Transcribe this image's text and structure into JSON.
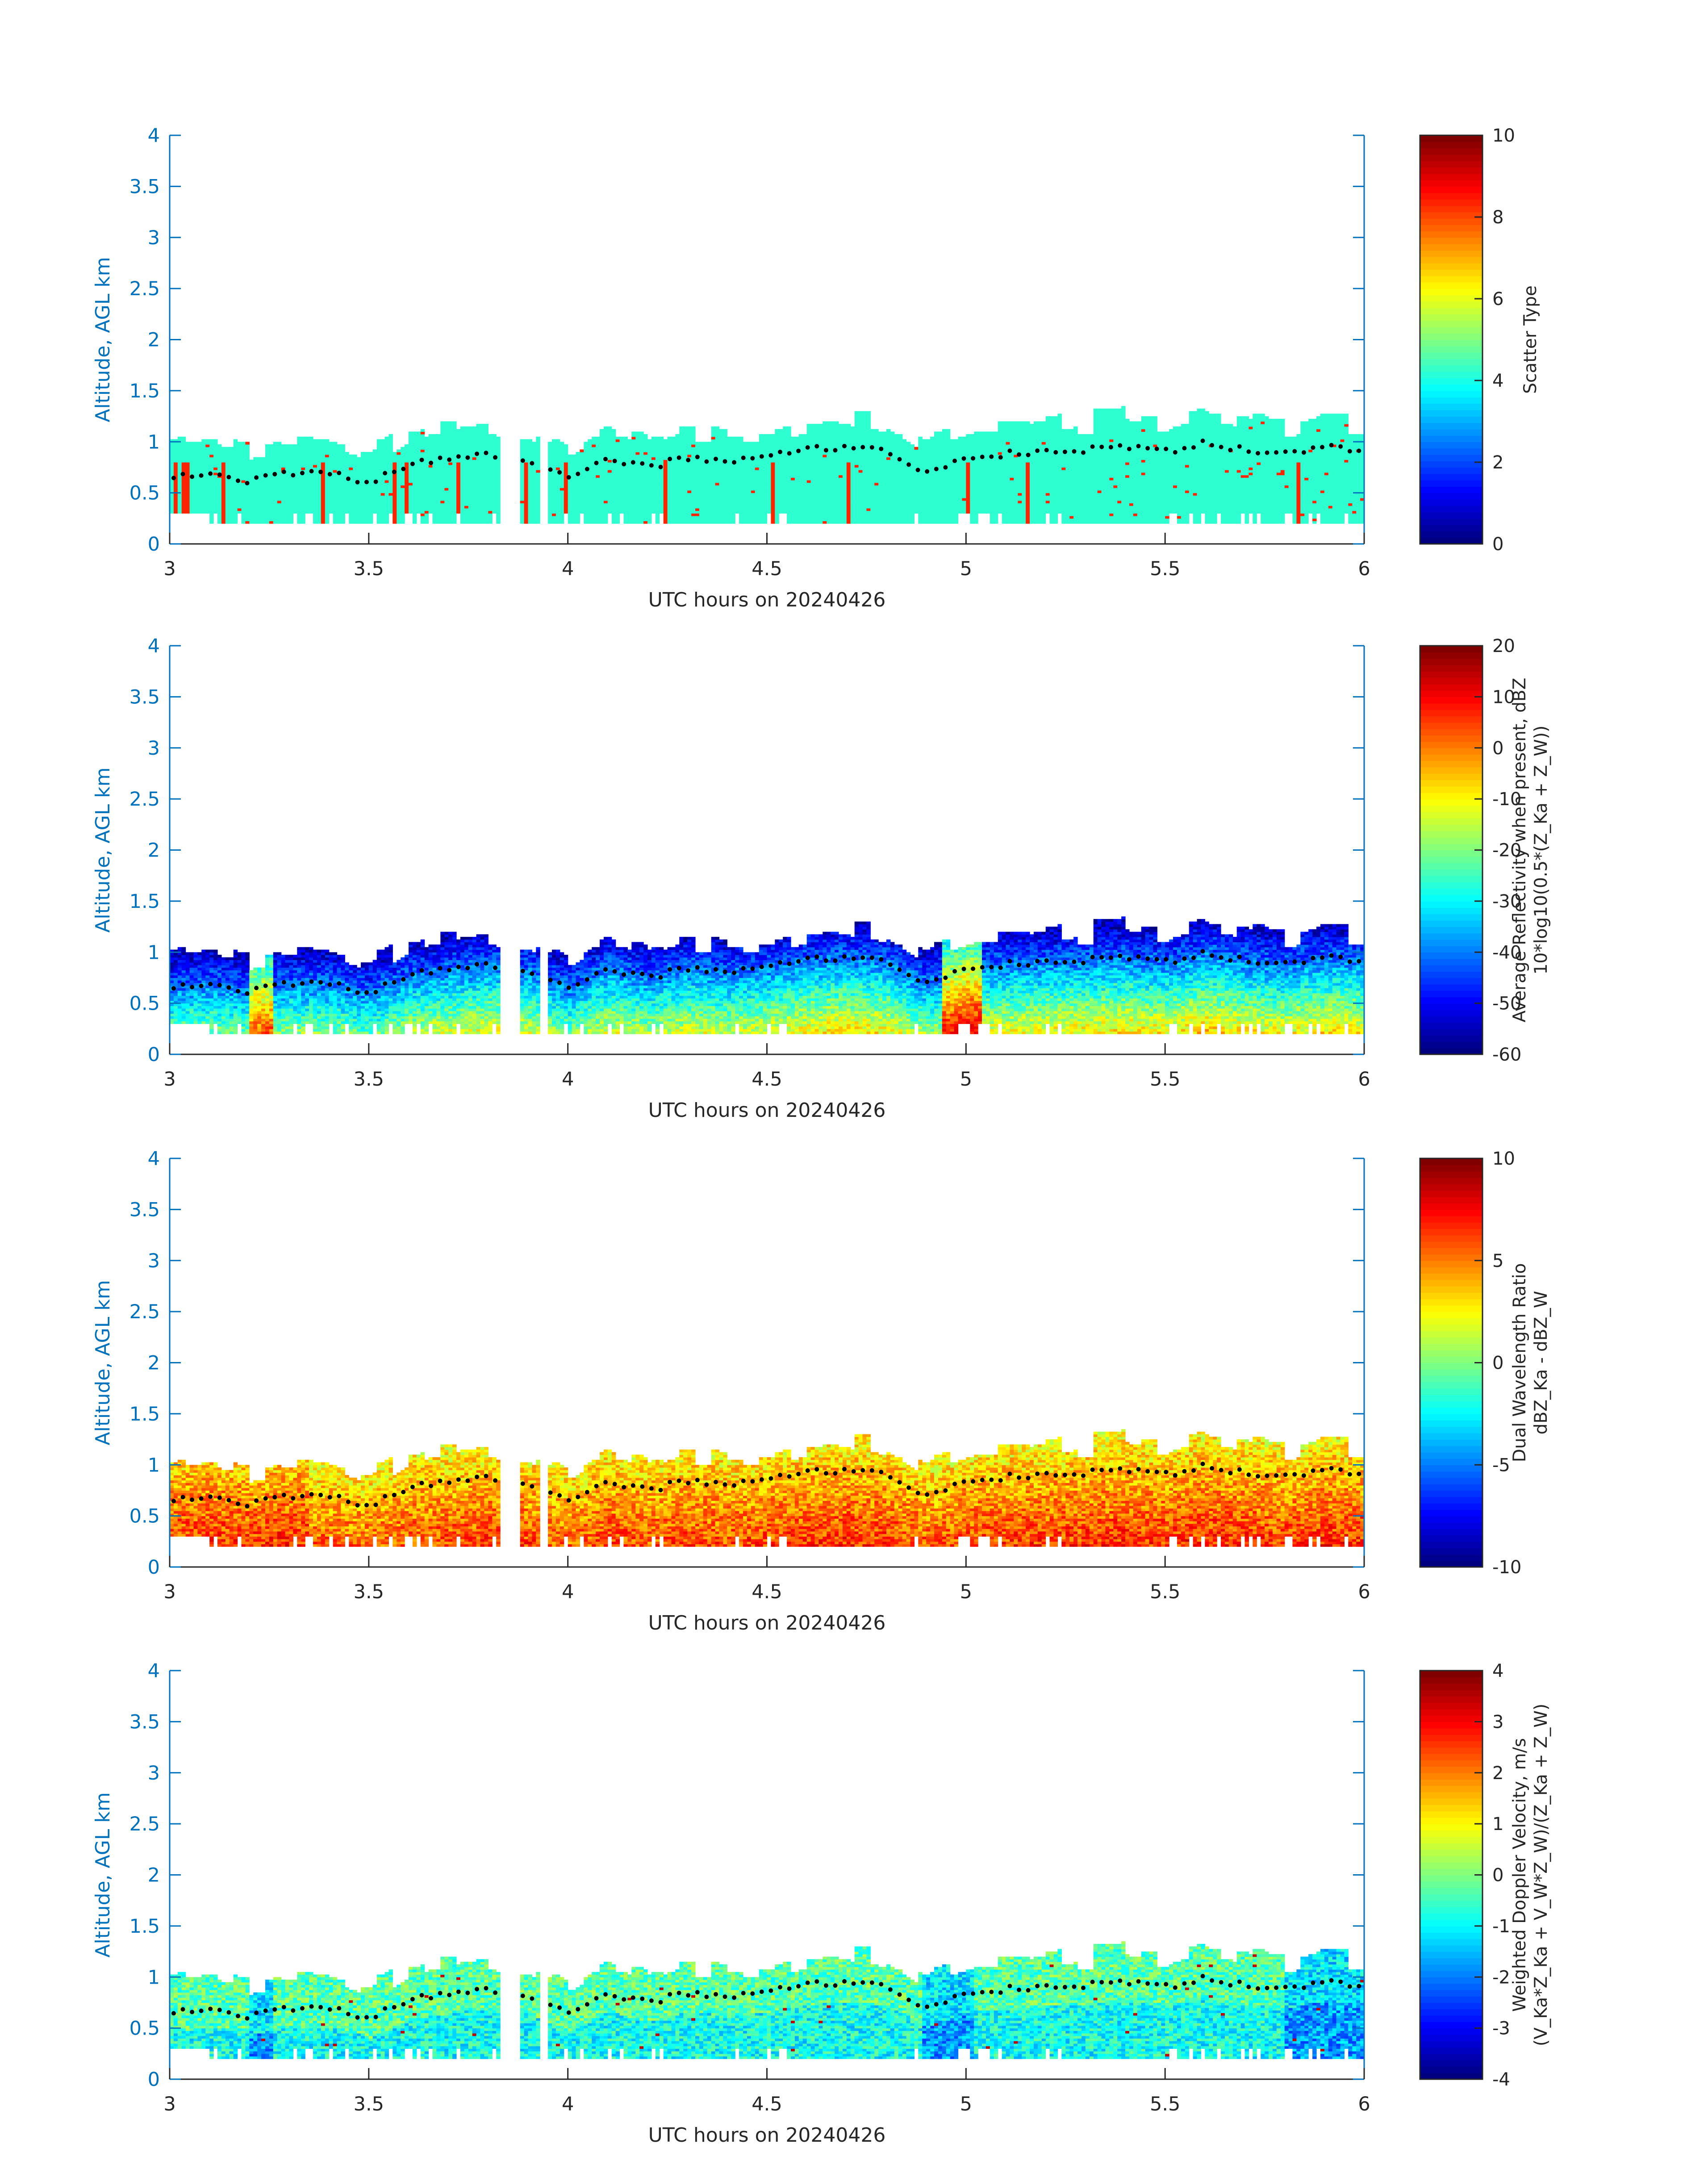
{
  "figure": {
    "xlabel": "UTC hours on 20240426",
    "ylabel": "Altitude, AGL km",
    "xlim": [
      3,
      6
    ],
    "ylim": [
      0,
      4
    ],
    "xticks": [
      "3",
      "3.5",
      "4",
      "4.5",
      "5",
      "5.5",
      "6"
    ],
    "yticks": [
      "0",
      "0.5",
      "1",
      "1.5",
      "2",
      "2.5",
      "3",
      "3.5",
      "4"
    ],
    "axis_color": "#0072BD"
  },
  "chart_data": [
    {
      "type": "heatmap",
      "panel": "Scatter type",
      "colorbar": {
        "label_lines": [
          "Scatter Type"
        ],
        "ticks": [
          "0",
          "2",
          "4",
          "6",
          "8",
          "10"
        ],
        "range": [
          0,
          10
        ]
      },
      "field_values": {
        "dominant": 4.2,
        "secondary": 8.4
      },
      "cloud_top_km_approx": [
        0.9,
        1.25,
        0.9,
        0.85,
        0.85,
        1.25,
        1.3,
        1.3,
        1.25,
        1.25
      ],
      "cloud_base_km_approx": 0.2
    },
    {
      "type": "heatmap",
      "panel": "Average reflectivity",
      "colorbar": {
        "label_lines": [
          "Average Reflectivity when present, dBZ",
          "10*log10(0.5*(Z_Ka + Z_W))"
        ],
        "ticks": [
          "-60",
          "-50",
          "-40",
          "-30",
          "-20",
          "-10",
          "0",
          "10",
          "20"
        ],
        "range": [
          -60,
          20
        ]
      },
      "field_range_dBZ": [
        -60,
        10
      ]
    },
    {
      "type": "heatmap",
      "panel": "Dual wavelength ratio",
      "colorbar": {
        "label_lines": [
          "Dual Wavelength Ratio",
          "dBZ_Ka - dBZ_W"
        ],
        "ticks": [
          "-10",
          "-5",
          "0",
          "5",
          "10"
        ],
        "range": [
          -10,
          10
        ]
      },
      "field_range_dB": [
        0,
        9
      ]
    },
    {
      "type": "heatmap",
      "panel": "Weighted Doppler velocity",
      "colorbar": {
        "label_lines": [
          "Weighted Doppler Velocity, m/s",
          "(V_Ka*Z_Ka + V_W*Z_W)/(Z_Ka + Z_W)"
        ],
        "ticks": [
          "-4",
          "-3",
          "-2",
          "-1",
          "0",
          "1",
          "2",
          "3",
          "4"
        ],
        "range": [
          -4,
          4
        ]
      },
      "field_range_ms": [
        -2,
        1
      ]
    }
  ],
  "cloud_top_dots": {
    "description_units": "hours, km",
    "x": [
      3.0,
      3.1,
      3.2,
      3.3,
      3.4,
      3.5,
      3.6,
      3.7,
      3.8,
      3.9,
      4.0,
      4.1,
      4.2,
      4.3,
      4.4,
      4.5,
      4.6,
      4.7,
      4.8,
      4.9,
      5.0,
      5.1,
      5.2,
      5.3,
      5.4,
      5.5,
      5.6,
      5.7,
      5.8,
      5.9,
      6.0
    ],
    "y": [
      0.65,
      0.7,
      0.62,
      0.7,
      0.7,
      0.6,
      0.78,
      0.83,
      0.88,
      0.82,
      0.65,
      0.85,
      0.75,
      0.85,
      0.8,
      0.85,
      0.92,
      0.95,
      0.9,
      0.7,
      0.85,
      0.88,
      0.9,
      0.92,
      0.95,
      0.9,
      1.0,
      0.92,
      0.88,
      0.95,
      0.92
    ]
  }
}
